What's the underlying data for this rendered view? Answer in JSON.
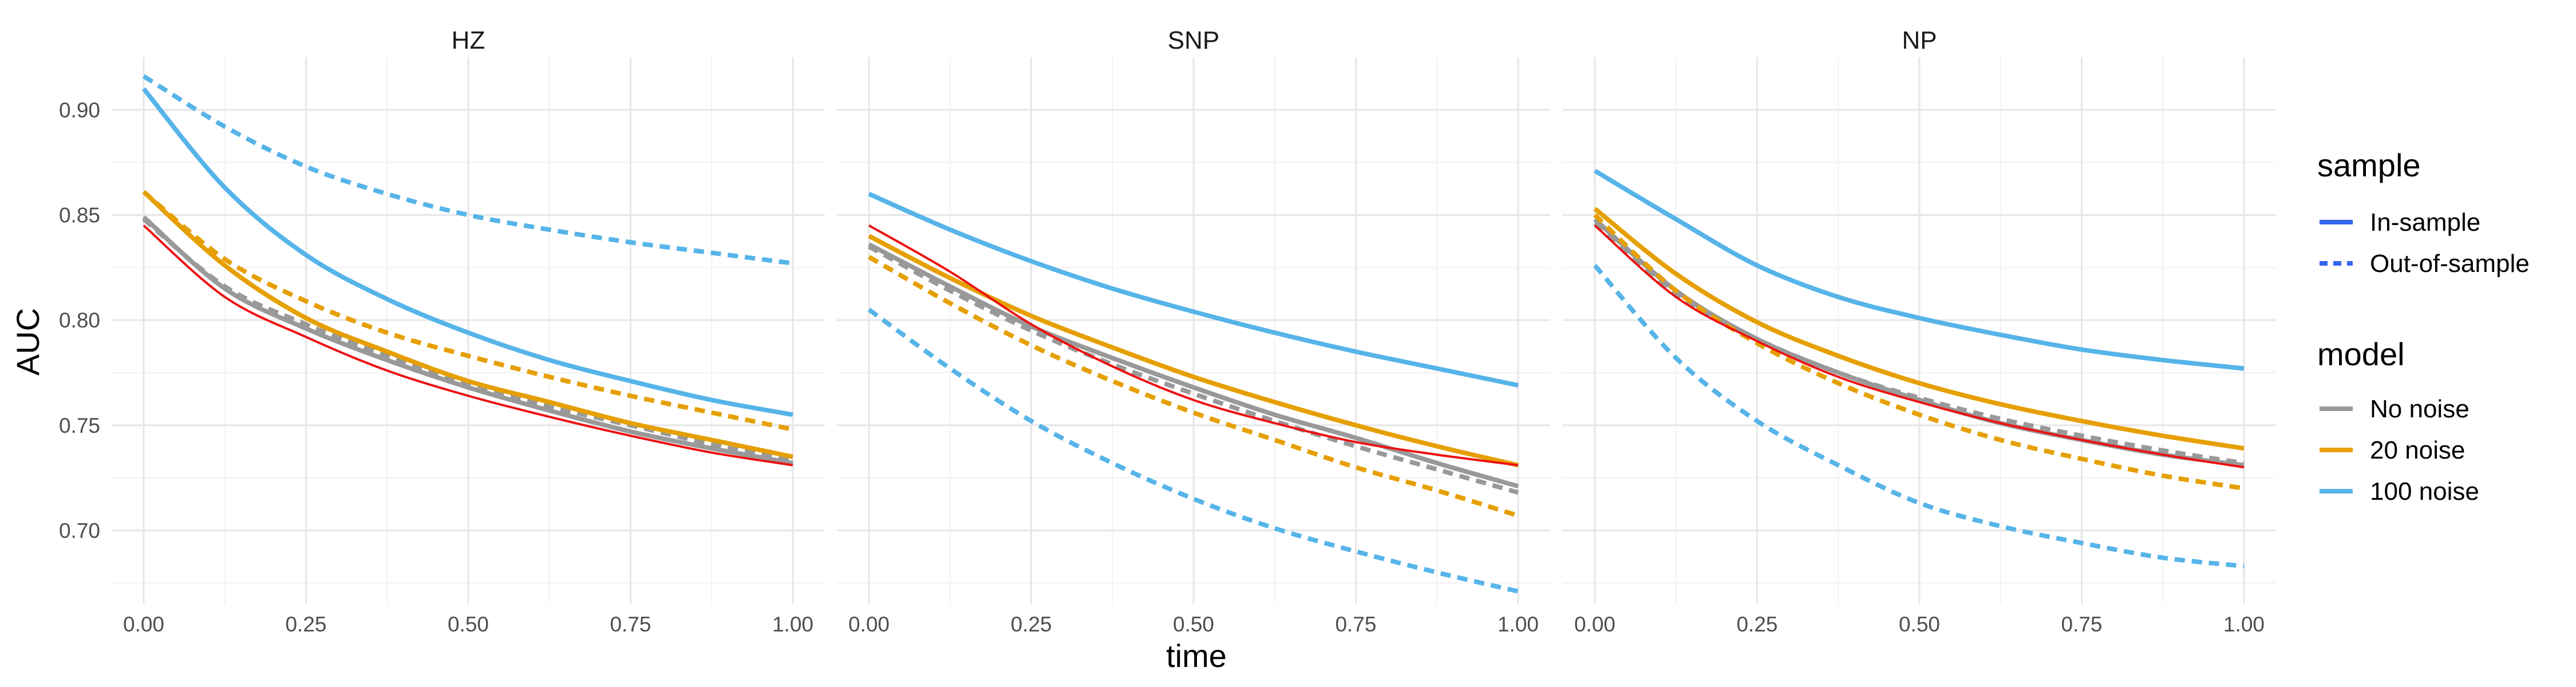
{
  "chart_data": {
    "type": "line",
    "panels": [
      "HZ",
      "SNP",
      "NP"
    ],
    "xlabel": "time",
    "ylabel": "AUC",
    "xlim": [
      0,
      1
    ],
    "ylim": [
      0.665,
      0.925
    ],
    "xticks": [
      0,
      0.25,
      0.5,
      0.75,
      1
    ],
    "xtick_labels": [
      "0.00",
      "0.25",
      "0.50",
      "0.75",
      "1.00"
    ],
    "yticks": [
      0.7,
      0.75,
      0.8,
      0.85,
      0.9
    ],
    "ytick_labels": [
      "0.70",
      "0.75",
      "0.80",
      "0.85",
      "0.90"
    ],
    "grid": true,
    "x": [
      0,
      0.125,
      0.25,
      0.375,
      0.5,
      0.625,
      0.75,
      0.875,
      1.0
    ],
    "legend": {
      "position": "right",
      "sample": {
        "title": "sample",
        "items": [
          {
            "label": "In-sample",
            "dash": "solid"
          },
          {
            "label": "Out-of-sample",
            "dash": "dashed"
          }
        ],
        "key_color": "#3366ee"
      },
      "model": {
        "title": "model",
        "items": [
          {
            "label": "No noise",
            "color": "#999999"
          },
          {
            "label": "20 noise",
            "color": "#E69F00"
          },
          {
            "label": "100 noise",
            "color": "#56B4E9"
          }
        ]
      }
    },
    "truth_color": "#ee1111",
    "series": [
      {
        "panel": "HZ",
        "model": "No noise",
        "sample": "In-sample",
        "values": [
          0.849,
          0.815,
          0.796,
          0.781,
          0.768,
          0.757,
          0.747,
          0.739,
          0.732
        ]
      },
      {
        "panel": "HZ",
        "model": "No noise",
        "sample": "Out-of-sample",
        "values": [
          0.848,
          0.816,
          0.798,
          0.783,
          0.77,
          0.759,
          0.75,
          0.741,
          0.733
        ]
      },
      {
        "panel": "HZ",
        "model": "20 noise",
        "sample": "In-sample",
        "values": [
          0.861,
          0.826,
          0.801,
          0.785,
          0.771,
          0.761,
          0.751,
          0.743,
          0.735
        ]
      },
      {
        "panel": "HZ",
        "model": "20 noise",
        "sample": "Out-of-sample",
        "values": [
          0.861,
          0.829,
          0.809,
          0.794,
          0.783,
          0.773,
          0.764,
          0.756,
          0.748
        ]
      },
      {
        "panel": "HZ",
        "model": "100 noise",
        "sample": "In-sample",
        "values": [
          0.91,
          0.863,
          0.831,
          0.81,
          0.794,
          0.781,
          0.771,
          0.762,
          0.755
        ]
      },
      {
        "panel": "HZ",
        "model": "100 noise",
        "sample": "Out-of-sample",
        "values": [
          0.916,
          0.892,
          0.873,
          0.86,
          0.85,
          0.843,
          0.837,
          0.832,
          0.827
        ]
      },
      {
        "panel": "HZ",
        "model": "truth",
        "sample": "In-sample",
        "values": [
          0.845,
          0.811,
          0.792,
          0.776,
          0.764,
          0.754,
          0.745,
          0.737,
          0.731
        ]
      },
      {
        "panel": "SNP",
        "model": "No noise",
        "sample": "In-sample",
        "values": [
          0.836,
          0.816,
          0.797,
          0.782,
          0.768,
          0.755,
          0.744,
          0.732,
          0.721
        ]
      },
      {
        "panel": "SNP",
        "model": "No noise",
        "sample": "Out-of-sample",
        "values": [
          0.835,
          0.814,
          0.795,
          0.779,
          0.765,
          0.752,
          0.74,
          0.729,
          0.718
        ]
      },
      {
        "panel": "SNP",
        "model": "20 noise",
        "sample": "In-sample",
        "values": [
          0.84,
          0.82,
          0.802,
          0.787,
          0.773,
          0.761,
          0.75,
          0.74,
          0.731
        ]
      },
      {
        "panel": "SNP",
        "model": "20 noise",
        "sample": "Out-of-sample",
        "values": [
          0.83,
          0.808,
          0.788,
          0.771,
          0.756,
          0.743,
          0.73,
          0.719,
          0.707
        ]
      },
      {
        "panel": "SNP",
        "model": "100 noise",
        "sample": "In-sample",
        "values": [
          0.86,
          0.843,
          0.828,
          0.815,
          0.804,
          0.794,
          0.785,
          0.777,
          0.769
        ]
      },
      {
        "panel": "SNP",
        "model": "100 noise",
        "sample": "Out-of-sample",
        "values": [
          0.805,
          0.777,
          0.752,
          0.732,
          0.715,
          0.701,
          0.69,
          0.68,
          0.671
        ]
      },
      {
        "panel": "SNP",
        "model": "truth",
        "sample": "In-sample",
        "values": [
          0.845,
          0.823,
          0.798,
          0.778,
          0.762,
          0.751,
          0.742,
          0.736,
          0.731
        ]
      },
      {
        "panel": "NP",
        "model": "No noise",
        "sample": "In-sample",
        "values": [
          0.848,
          0.814,
          0.791,
          0.775,
          0.762,
          0.751,
          0.743,
          0.736,
          0.731
        ]
      },
      {
        "panel": "NP",
        "model": "No noise",
        "sample": "Out-of-sample",
        "values": [
          0.846,
          0.812,
          0.791,
          0.775,
          0.763,
          0.753,
          0.745,
          0.738,
          0.732
        ]
      },
      {
        "panel": "NP",
        "model": "20 noise",
        "sample": "In-sample",
        "values": [
          0.853,
          0.822,
          0.799,
          0.783,
          0.77,
          0.76,
          0.752,
          0.745,
          0.739
        ]
      },
      {
        "panel": "NP",
        "model": "20 noise",
        "sample": "Out-of-sample",
        "values": [
          0.85,
          0.814,
          0.789,
          0.77,
          0.755,
          0.743,
          0.734,
          0.726,
          0.72
        ]
      },
      {
        "panel": "NP",
        "model": "100 noise",
        "sample": "In-sample",
        "values": [
          0.871,
          0.848,
          0.826,
          0.811,
          0.801,
          0.793,
          0.786,
          0.781,
          0.777
        ]
      },
      {
        "panel": "NP",
        "model": "100 noise",
        "sample": "Out-of-sample",
        "values": [
          0.826,
          0.782,
          0.752,
          0.731,
          0.713,
          0.702,
          0.694,
          0.687,
          0.683
        ]
      },
      {
        "panel": "NP",
        "model": "truth",
        "sample": "In-sample",
        "values": [
          0.845,
          0.811,
          0.79,
          0.773,
          0.761,
          0.751,
          0.743,
          0.736,
          0.73
        ]
      }
    ]
  }
}
